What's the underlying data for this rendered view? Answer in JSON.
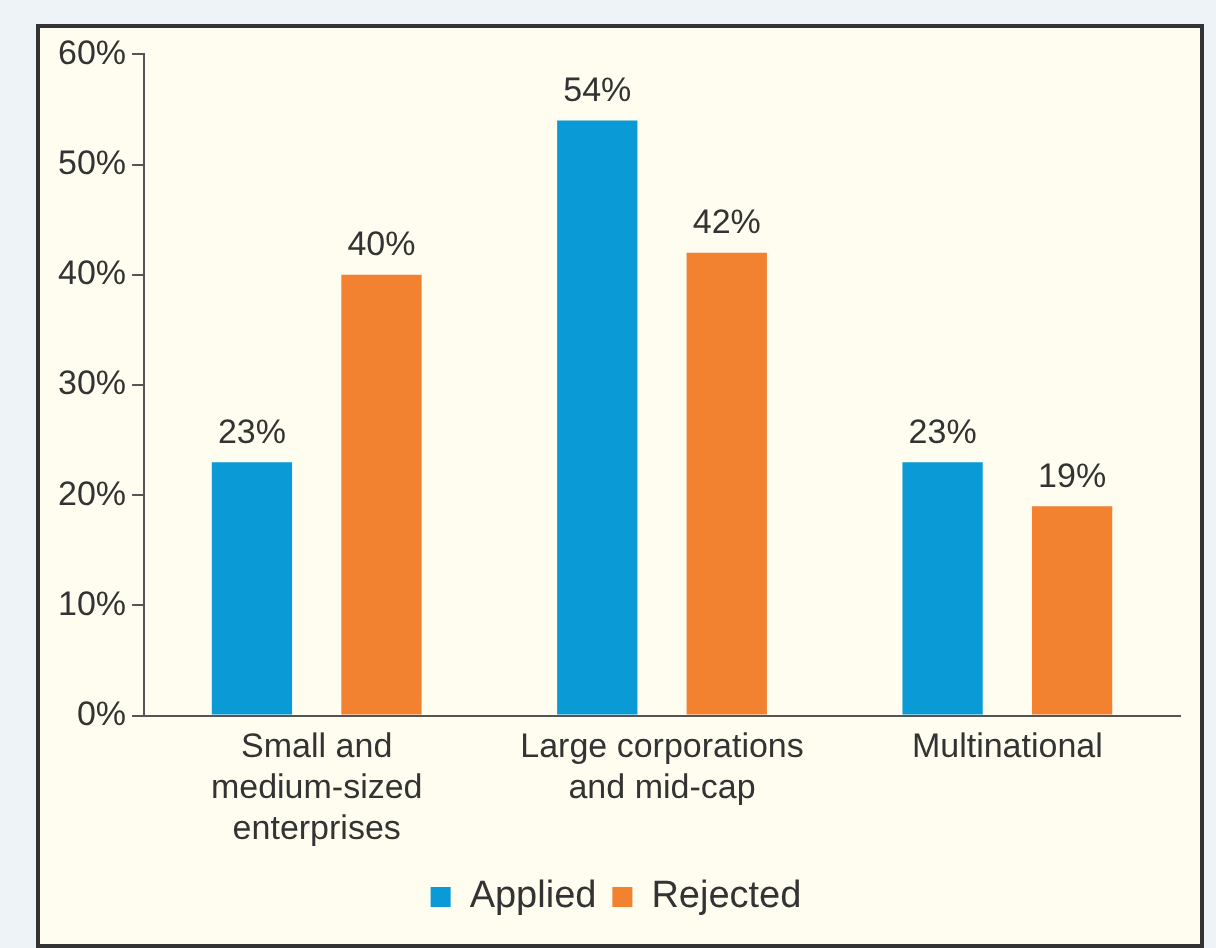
{
  "chart_data": {
    "type": "bar",
    "categories": [
      "Small and medium-sized enterprises",
      "Large corporations and mid-cap",
      "Multinational"
    ],
    "series": [
      {
        "name": "Applied",
        "color": "#0a9bd6",
        "values": [
          23,
          54,
          23
        ],
        "value_labels": [
          "23%",
          "54%",
          "23%"
        ]
      },
      {
        "name": "Rejected",
        "color": "#f28130",
        "values": [
          40,
          42,
          19
        ],
        "value_labels": [
          "40%",
          "42%",
          "19%"
        ]
      }
    ],
    "ylim": [
      0,
      60
    ],
    "yticks": [
      {
        "value": 0,
        "label": "0%"
      },
      {
        "value": 10,
        "label": "10%"
      },
      {
        "value": 20,
        "label": "20%"
      },
      {
        "value": 30,
        "label": "30%"
      },
      {
        "value": 40,
        "label": "40%"
      },
      {
        "value": 50,
        "label": "50%"
      },
      {
        "value": 60,
        "label": "60%"
      }
    ],
    "grid": false,
    "legend": "bottom"
  }
}
